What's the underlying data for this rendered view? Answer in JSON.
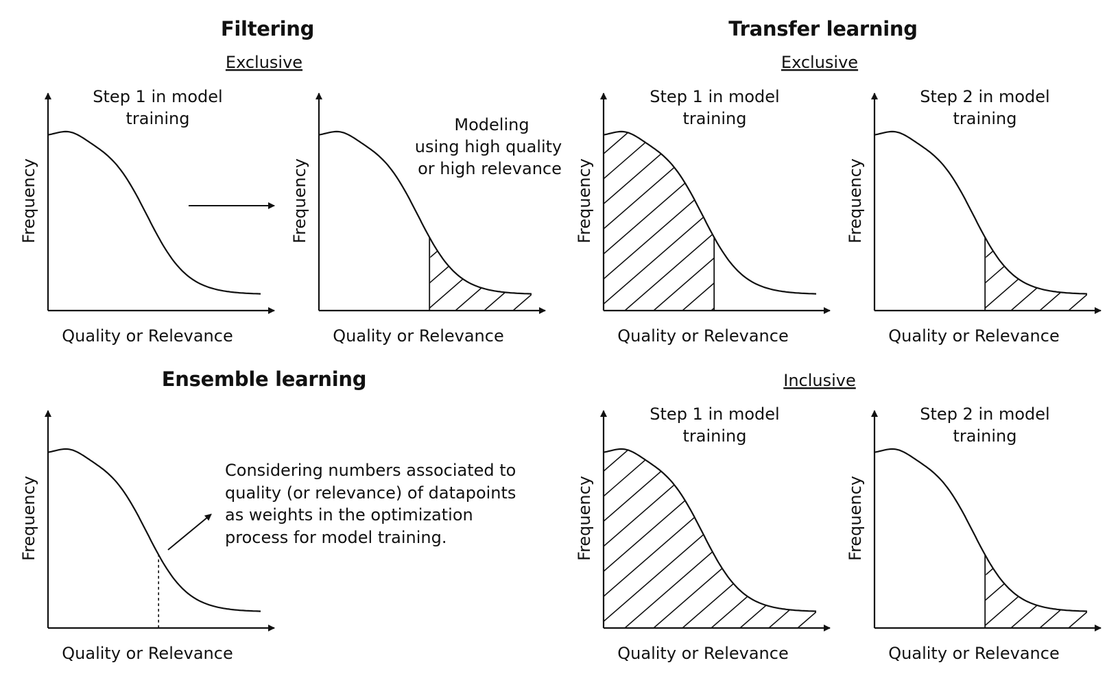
{
  "headings": {
    "filtering": "Filtering",
    "transfer_learning": "Transfer learning",
    "ensemble_learning": "Ensemble learning"
  },
  "subheadings": {
    "filtering_exclusive": "Exclusive",
    "transfer_exclusive": "Exclusive",
    "transfer_inclusive": "Inclusive"
  },
  "axis": {
    "ylabel": "Frequency",
    "xlabel": "Quality or Relevance"
  },
  "panel_labels": {
    "step1": [
      "Step 1 in model",
      "training"
    ],
    "step2": [
      "Step 2 in model",
      "training"
    ],
    "modeling": [
      "Modeling",
      "using high quality",
      "or high relevance"
    ]
  },
  "ensemble_note": [
    "Considering numbers associated to",
    "quality (or relevance) of datapoints",
    "as weights in the optimization",
    "process for model training."
  ],
  "colors": {
    "ink": "#111111",
    "background": "#ffffff"
  }
}
